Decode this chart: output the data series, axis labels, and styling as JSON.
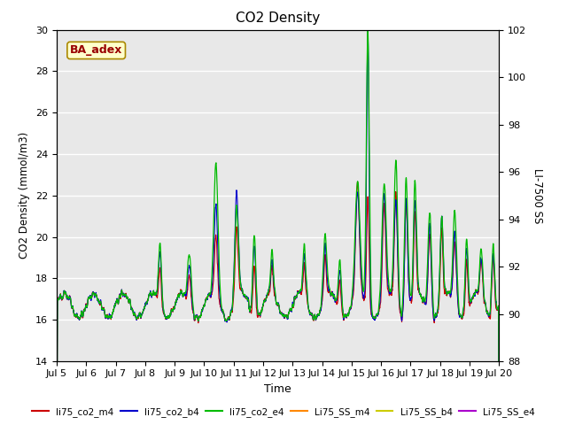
{
  "title": "CO2 Density",
  "xlabel": "Time",
  "ylabel_left": "CO2 Density (mmol/m3)",
  "ylabel_right": "LI-7500 SS",
  "ylim_left": [
    14,
    30
  ],
  "ylim_right": [
    88,
    102
  ],
  "x_tick_labels": [
    "Jul 5",
    "Jul 6",
    "Jul 7",
    "Jul 8",
    "Jul 9",
    "Jul 10",
    "Jul 11",
    "Jul 12",
    "Jul 13",
    "Jul 14",
    "Jul 15",
    "Jul 16",
    "Jul 17",
    "Jul 18",
    "Jul 19",
    "Jul 20"
  ],
  "yticks_left": [
    14,
    16,
    18,
    20,
    22,
    24,
    26,
    28,
    30
  ],
  "yticks_right": [
    88,
    90,
    92,
    94,
    96,
    98,
    100,
    102
  ],
  "series_colors": {
    "li75_co2_m4": "#cc0000",
    "li75_co2_b4": "#0000cc",
    "li75_co2_e4": "#00bb00",
    "Li75_SS_m4": "#ff8800",
    "Li75_SS_b4": "#cccc00",
    "Li75_SS_e4": "#aa00cc"
  },
  "ba_adex_color": "#990000",
  "ba_adex_bg": "#ffffcc",
  "background_color": "#e8e8e8",
  "grid_color": "#ffffff"
}
